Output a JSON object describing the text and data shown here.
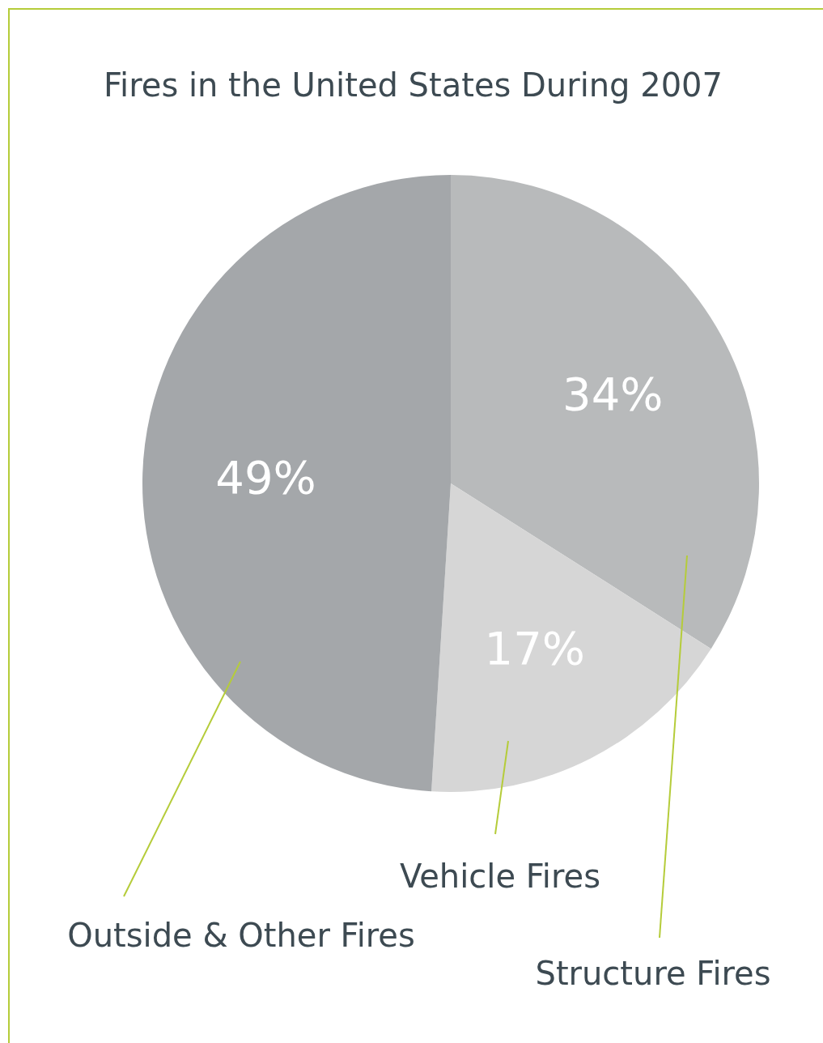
{
  "chart_data": {
    "type": "pie",
    "title": "Fires in the United States During 2007",
    "categories": [
      "Structure Fires",
      "Vehicle Fires",
      "Outside & Other Fires"
    ],
    "values": [
      34,
      17,
      49
    ],
    "colors": [
      "#b8babb",
      "#d6d6d6",
      "#a4a7aa"
    ],
    "value_labels": [
      "34%",
      "17%",
      "49%"
    ],
    "legend": false
  }
}
